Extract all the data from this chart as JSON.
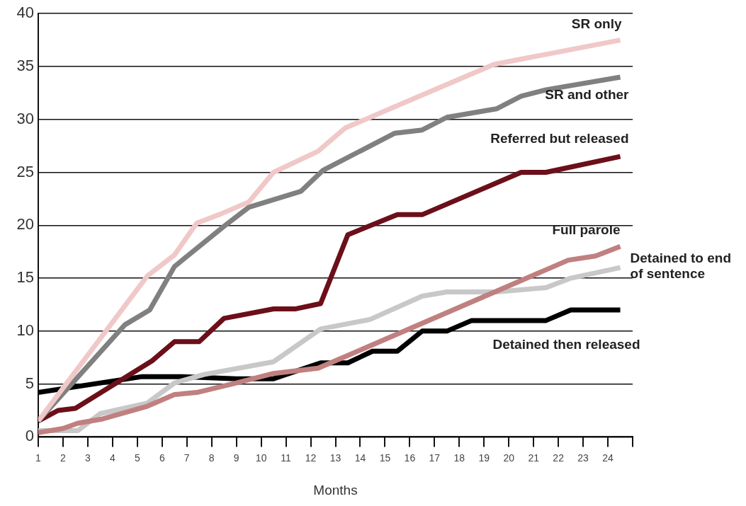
{
  "chart_data": {
    "type": "line",
    "xlabel": "Months",
    "xlim": [
      1,
      25
    ],
    "xticks": [
      1,
      2,
      3,
      4,
      5,
      6,
      7,
      8,
      9,
      10,
      11,
      12,
      13,
      14,
      15,
      16,
      17,
      18,
      19,
      20,
      21,
      22,
      23,
      24,
      {
        "value": 25,
        "label": null
      }
    ],
    "ylim": [
      0,
      40
    ],
    "yticks": [
      0,
      5,
      10,
      15,
      20,
      25,
      30,
      35,
      40
    ],
    "grid": "y",
    "legend": false,
    "marker": "none",
    "line_style": "solid",
    "series": [
      {
        "name": "SR only",
        "color": "#f0c8c8",
        "x": [
          1,
          5.4,
          6.5,
          7.4,
          8.3,
          9.5,
          10.5,
          12.3,
          13.4,
          16,
          19.4,
          20.5,
          24.5
        ],
        "values": [
          1.5,
          15.2,
          17.2,
          20.2,
          21,
          22.2,
          25,
          27,
          29.2,
          31.8,
          35.2,
          35.7,
          37.5
        ]
      },
      {
        "name": "SR and other",
        "color": "#808080",
        "x": [
          1,
          4.5,
          5.5,
          6.5,
          8.5,
          9.5,
          11.6,
          12.5,
          15.4,
          16.5,
          17.5,
          19.5,
          20.5,
          21.5,
          24.5
        ],
        "values": [
          1.5,
          10.6,
          12,
          16.1,
          19.9,
          21.7,
          23.2,
          25.2,
          28.7,
          29,
          30.2,
          31,
          32.2,
          32.8,
          34
        ]
      },
      {
        "name": "Referred but released",
        "color": "#6b0f1a",
        "x": [
          1,
          1.8,
          2.5,
          5.6,
          6.5,
          7.5,
          8.5,
          10.5,
          11.4,
          12.4,
          13.5,
          15.5,
          16.5,
          20.5,
          21.5,
          24.5
        ],
        "values": [
          1.5,
          2.5,
          2.7,
          7.2,
          9,
          9,
          11.2,
          12.1,
          12.1,
          12.6,
          19.1,
          21,
          21,
          25,
          25,
          26.5
        ]
      },
      {
        "name": "Full parole",
        "color": "#c08080",
        "x": [
          1,
          2,
          2.6,
          3.6,
          5.4,
          6.5,
          7.4,
          9,
          10.5,
          12.3,
          13.5,
          22.4,
          23.5,
          24.5
        ],
        "values": [
          0.4,
          0.8,
          1.3,
          1.7,
          2.9,
          4,
          4.2,
          5.1,
          6,
          6.5,
          7.7,
          16.7,
          17.1,
          18
        ]
      },
      {
        "name": "Detained to end of sentence",
        "color": "#c8c8c8",
        "x": [
          1,
          2.6,
          3.5,
          5.4,
          6.5,
          7.7,
          10.5,
          12.4,
          14.4,
          16.5,
          17.5,
          19.5,
          21.5,
          22.5,
          24.5
        ],
        "values": [
          0.6,
          0.6,
          2.2,
          3.2,
          5.1,
          5.9,
          7.1,
          10.2,
          11.1,
          13.3,
          13.7,
          13.7,
          14.1,
          15,
          16
        ]
      },
      {
        "name": "Detained then released",
        "color": "#000000",
        "x": [
          1,
          5.2,
          6.8,
          9,
          10.5,
          12.4,
          13.5,
          14.5,
          15.5,
          16.5,
          17.5,
          18.5,
          21.5,
          22.5,
          24.5
        ],
        "values": [
          4.2,
          5.7,
          5.7,
          5.5,
          5.5,
          7,
          7,
          8.1,
          8.1,
          10,
          10,
          11,
          11,
          12,
          12
        ]
      }
    ]
  }
}
